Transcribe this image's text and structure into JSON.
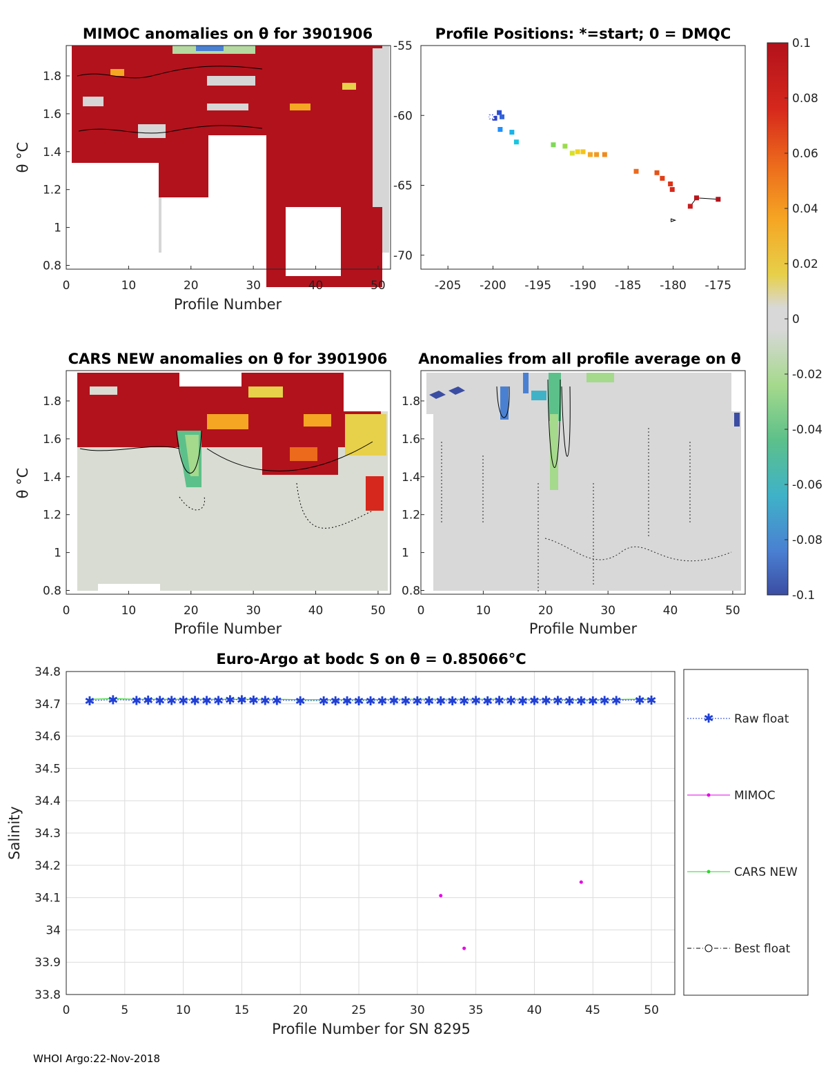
{
  "footer": "WHOI Argo:22-Nov-2018",
  "colorbar": {
    "ticks": [
      "0.1",
      "0.08",
      "0.06",
      "0.04",
      "0.02",
      "0",
      "-0.02",
      "-0.04",
      "-0.06",
      "-0.08",
      "-0.1"
    ],
    "colors": [
      "#3b4da3",
      "#4a80d2",
      "#3fb2c8",
      "#5cc08a",
      "#a5d98c",
      "#d8d8d8",
      "#d8d8d8",
      "#e7d04a",
      "#f5a623",
      "#ec6a1c",
      "#d6281c",
      "#b2121c"
    ]
  },
  "chart_data": [
    {
      "id": "mimoc",
      "type": "heatmap",
      "title": "MIMOC anomalies on θ  for 3901906",
      "xlabel": "Profile Number",
      "ylabel": "θ °C",
      "xlim": [
        0,
        52
      ],
      "ylim": [
        0.78,
        1.96
      ],
      "xticks": [
        "0",
        "10",
        "20",
        "30",
        "40",
        "50"
      ],
      "yticks": [
        "1.8",
        "1.6",
        "1.4",
        "1.2",
        "1",
        "0.8"
      ],
      "ytick_values": [
        1.8,
        1.6,
        1.4,
        1.2,
        1.0,
        0.8
      ]
    },
    {
      "id": "positions",
      "type": "scatter",
      "title": "Profile Positions: *=start; 0 = DMQC",
      "xlim": [
        -208,
        -172
      ],
      "ylim": [
        -71,
        -55
      ],
      "xticks": [
        "-205",
        "-200",
        "-195",
        "-190",
        "-185",
        "-180",
        "-175"
      ],
      "xtick_values": [
        -205,
        -200,
        -195,
        -190,
        -185,
        -180,
        -175
      ],
      "yticks": [
        "-55",
        "-60",
        "-65",
        "-70"
      ],
      "ytick_values": [
        -55,
        -60,
        -65,
        -70
      ],
      "points": [
        {
          "lon": -200.2,
          "lat": -60.1,
          "color": "#2b3fc9"
        },
        {
          "lon": -199.8,
          "lat": -60.2,
          "color": "#2b3fc9"
        },
        {
          "lon": -199.3,
          "lat": -59.8,
          "color": "#2b4fd4"
        },
        {
          "lon": -199.0,
          "lat": -60.1,
          "color": "#3364dc"
        },
        {
          "lon": -199.2,
          "lat": -61.0,
          "color": "#1e90ff"
        },
        {
          "lon": -197.9,
          "lat": -61.2,
          "color": "#19b4e8"
        },
        {
          "lon": -197.4,
          "lat": -61.9,
          "color": "#18c6e0"
        },
        {
          "lon": -193.3,
          "lat": -62.1,
          "color": "#7ed957"
        },
        {
          "lon": -192.0,
          "lat": -62.2,
          "color": "#9bdc4a"
        },
        {
          "lon": -191.2,
          "lat": -62.7,
          "color": "#d6e02a"
        },
        {
          "lon": -190.6,
          "lat": -62.6,
          "color": "#f0d21e"
        },
        {
          "lon": -190.0,
          "lat": -62.6,
          "color": "#f4c419"
        },
        {
          "lon": -189.2,
          "lat": -62.8,
          "color": "#f5a623"
        },
        {
          "lon": -188.5,
          "lat": -62.8,
          "color": "#f29a1f"
        },
        {
          "lon": -187.6,
          "lat": -62.8,
          "color": "#f08a1c"
        },
        {
          "lon": -184.1,
          "lat": -64.0,
          "color": "#ec6a1c"
        },
        {
          "lon": -181.8,
          "lat": -64.1,
          "color": "#e65218"
        },
        {
          "lon": -181.2,
          "lat": -64.5,
          "color": "#e23e16"
        },
        {
          "lon": -180.3,
          "lat": -64.9,
          "color": "#dd3216"
        },
        {
          "lon": -180.1,
          "lat": -65.3,
          "color": "#d6281c"
        },
        {
          "lon": -178.1,
          "lat": -66.5,
          "color": "#c81e1e"
        },
        {
          "lon": -177.4,
          "lat": -65.9,
          "color": "#b8161c"
        },
        {
          "lon": -175.0,
          "lat": -66.0,
          "color": "#b2121c"
        }
      ],
      "dmqc_marker": {
        "lon": -180.0,
        "lat": -67.5
      }
    },
    {
      "id": "cars",
      "type": "heatmap",
      "title": "CARS NEW anomalies on θ for 3901906",
      "xlabel": "Profile Number",
      "ylabel": "θ °C",
      "xlim": [
        0,
        52
      ],
      "ylim": [
        0.78,
        1.96
      ],
      "xticks": [
        "0",
        "10",
        "20",
        "30",
        "40",
        "50"
      ],
      "yticks": [
        "1.8",
        "1.6",
        "1.4",
        "1.2",
        "1",
        "0.8"
      ],
      "ytick_values": [
        1.8,
        1.6,
        1.4,
        1.2,
        1.0,
        0.8
      ]
    },
    {
      "id": "avg",
      "type": "heatmap",
      "title": "Anomalies from all profile average on θ",
      "xlabel": "Profile Number",
      "xlim": [
        0,
        52
      ],
      "ylim": [
        0.78,
        1.96
      ],
      "xticks": [
        "0",
        "10",
        "20",
        "30",
        "40",
        "50"
      ],
      "yticks": [
        "1.8",
        "1.6",
        "1.4",
        "1.2",
        "1",
        "0.8"
      ],
      "ytick_values": [
        1.8,
        1.6,
        1.4,
        1.2,
        1.0,
        0.8
      ]
    },
    {
      "id": "salinity",
      "type": "line",
      "title": "Euro-Argo at bodc S on θ = 0.85066°C",
      "xlabel": "Profile Number for SN 8295",
      "ylabel": "Salinity",
      "xlim": [
        0,
        52
      ],
      "ylim": [
        33.8,
        34.8
      ],
      "xticks": [
        "0",
        "5",
        "10",
        "15",
        "20",
        "25",
        "30",
        "35",
        "40",
        "45",
        "50"
      ],
      "xtick_values": [
        0,
        5,
        10,
        15,
        20,
        25,
        30,
        35,
        40,
        45,
        50
      ],
      "yticks": [
        "34.8",
        "34.7",
        "34.6",
        "34.5",
        "34.4",
        "34.3",
        "34.2",
        "34.1",
        "34",
        "33.9",
        "33.8"
      ],
      "ytick_values": [
        34.8,
        34.7,
        34.6,
        34.5,
        34.4,
        34.3,
        34.2,
        34.1,
        34.0,
        33.9,
        33.8
      ],
      "legend": [
        "Raw float",
        "MIMOC",
        "CARS NEW",
        "Best float"
      ],
      "series": [
        {
          "name": "Raw float",
          "color": "#1f3fd6",
          "x": [
            2,
            4,
            6,
            7,
            8,
            9,
            10,
            11,
            12,
            13,
            14,
            15,
            16,
            17,
            18,
            20,
            22,
            23,
            24,
            25,
            26,
            27,
            28,
            29,
            30,
            31,
            32,
            33,
            34,
            35,
            36,
            37,
            38,
            39,
            40,
            41,
            42,
            43,
            44,
            45,
            46,
            47,
            49,
            50
          ],
          "y": [
            34.71,
            34.713,
            34.711,
            34.712,
            34.711,
            34.711,
            34.711,
            34.711,
            34.711,
            34.711,
            34.713,
            34.713,
            34.712,
            34.711,
            34.711,
            34.71,
            34.71,
            34.71,
            34.71,
            34.71,
            34.71,
            34.71,
            34.711,
            34.71,
            34.71,
            34.71,
            34.71,
            34.71,
            34.71,
            34.711,
            34.71,
            34.711,
            34.711,
            34.71,
            34.711,
            34.711,
            34.711,
            34.71,
            34.71,
            34.71,
            34.711,
            34.711,
            34.712,
            34.712
          ]
        },
        {
          "name": "MIMOC",
          "color": "#e600e6",
          "x": [
            32,
            34,
            44
          ],
          "y": [
            34.106,
            33.943,
            34.148
          ]
        },
        {
          "name": "CARS NEW",
          "color": "#2ed62e",
          "x": [
            2,
            4,
            6,
            8,
            10,
            12,
            14,
            16,
            18,
            20,
            22,
            24,
            26,
            28,
            30,
            32,
            34,
            36,
            38,
            40,
            42,
            44,
            46,
            48,
            50
          ],
          "y": [
            34.714,
            34.716,
            34.714,
            34.714,
            34.714,
            34.714,
            34.714,
            34.714,
            34.714,
            34.713,
            34.713,
            34.713,
            34.713,
            34.714,
            34.714,
            34.714,
            34.714,
            34.714,
            34.714,
            34.714,
            34.713,
            34.713,
            34.713,
            34.714,
            34.714
          ]
        },
        {
          "name": "Best float",
          "color": "#000000",
          "x": [],
          "y": []
        }
      ]
    }
  ]
}
